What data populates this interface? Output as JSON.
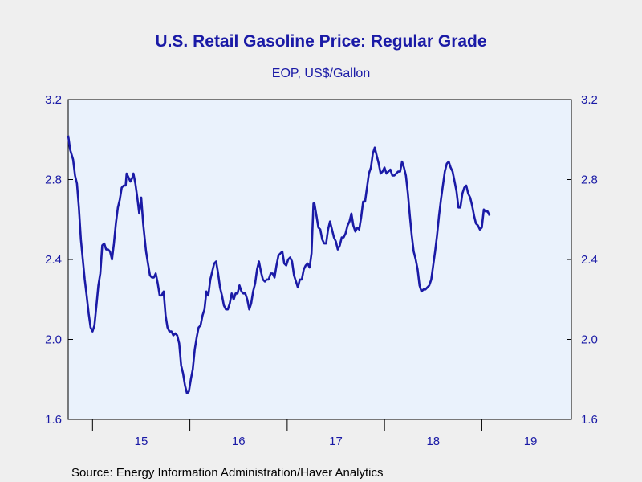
{
  "chart_data": {
    "type": "line",
    "title": "U.S. Retail Gasoline Price: Regular Grade",
    "subtitle": "EOP, US$/Gallon",
    "source": "Source:  Energy Information Administration/Haver Analytics",
    "ylim": [
      1.6,
      3.2
    ],
    "yticks": [
      {
        "value": 1.6,
        "label": "1.6"
      },
      {
        "value": 2.0,
        "label": "2.0"
      },
      {
        "value": 2.4,
        "label": "2.4"
      },
      {
        "value": 2.8,
        "label": "2.8"
      },
      {
        "value": 3.2,
        "label": "3.2"
      }
    ],
    "xlim": [
      2014.75,
      2019.92
    ],
    "xticks": [
      2015,
      2016,
      2017,
      2018,
      2019
    ],
    "xlabels": [
      {
        "value": 2015.5,
        "label": "15"
      },
      {
        "value": 2016.5,
        "label": "16"
      },
      {
        "value": 2017.5,
        "label": "17"
      },
      {
        "value": 2018.5,
        "label": "18"
      },
      {
        "value": 2019.5,
        "label": "19"
      }
    ],
    "grid": false,
    "colors": {
      "line": "#1a1aa6",
      "plot_bg": "#eaf2fc",
      "page_bg": "#efefef",
      "text": "#1a1aa6"
    },
    "series": [
      {
        "values": [
          [
            2014.75,
            3.02
          ],
          [
            2014.77,
            2.95
          ],
          [
            2014.8,
            2.9
          ],
          [
            2014.82,
            2.82
          ],
          [
            2014.84,
            2.78
          ],
          [
            2014.86,
            2.66
          ],
          [
            2014.88,
            2.5
          ],
          [
            2014.9,
            2.4
          ],
          [
            2014.92,
            2.3
          ],
          [
            2014.94,
            2.22
          ],
          [
            2014.96,
            2.13
          ],
          [
            2014.98,
            2.06
          ],
          [
            2015.0,
            2.04
          ],
          [
            2015.02,
            2.07
          ],
          [
            2015.04,
            2.17
          ],
          [
            2015.06,
            2.27
          ],
          [
            2015.08,
            2.33
          ],
          [
            2015.1,
            2.47
          ],
          [
            2015.12,
            2.48
          ],
          [
            2015.14,
            2.45
          ],
          [
            2015.16,
            2.45
          ],
          [
            2015.18,
            2.44
          ],
          [
            2015.2,
            2.4
          ],
          [
            2015.22,
            2.48
          ],
          [
            2015.24,
            2.58
          ],
          [
            2015.26,
            2.66
          ],
          [
            2015.28,
            2.7
          ],
          [
            2015.3,
            2.76
          ],
          [
            2015.32,
            2.77
          ],
          [
            2015.34,
            2.77
          ],
          [
            2015.35,
            2.83
          ],
          [
            2015.37,
            2.81
          ],
          [
            2015.39,
            2.79
          ],
          [
            2015.41,
            2.81
          ],
          [
            2015.42,
            2.83
          ],
          [
            2015.44,
            2.78
          ],
          [
            2015.46,
            2.71
          ],
          [
            2015.48,
            2.63
          ],
          [
            2015.5,
            2.71
          ],
          [
            2015.52,
            2.58
          ],
          [
            2015.55,
            2.44
          ],
          [
            2015.57,
            2.38
          ],
          [
            2015.59,
            2.32
          ],
          [
            2015.61,
            2.31
          ],
          [
            2015.63,
            2.31
          ],
          [
            2015.65,
            2.33
          ],
          [
            2015.67,
            2.28
          ],
          [
            2015.69,
            2.22
          ],
          [
            2015.71,
            2.22
          ],
          [
            2015.73,
            2.24
          ],
          [
            2015.75,
            2.12
          ],
          [
            2015.77,
            2.06
          ],
          [
            2015.79,
            2.04
          ],
          [
            2015.81,
            2.04
          ],
          [
            2015.83,
            2.02
          ],
          [
            2015.85,
            2.03
          ],
          [
            2015.87,
            2.02
          ],
          [
            2015.89,
            1.98
          ],
          [
            2015.91,
            1.87
          ],
          [
            2015.93,
            1.83
          ],
          [
            2015.95,
            1.77
          ],
          [
            2015.97,
            1.73
          ],
          [
            2015.99,
            1.74
          ],
          [
            2016.01,
            1.8
          ],
          [
            2016.03,
            1.85
          ],
          [
            2016.05,
            1.95
          ],
          [
            2016.07,
            2.01
          ],
          [
            2016.09,
            2.06
          ],
          [
            2016.11,
            2.07
          ],
          [
            2016.13,
            2.12
          ],
          [
            2016.15,
            2.15
          ],
          [
            2016.17,
            2.24
          ],
          [
            2016.19,
            2.22
          ],
          [
            2016.21,
            2.3
          ],
          [
            2016.23,
            2.34
          ],
          [
            2016.25,
            2.38
          ],
          [
            2016.27,
            2.39
          ],
          [
            2016.29,
            2.33
          ],
          [
            2016.31,
            2.26
          ],
          [
            2016.33,
            2.22
          ],
          [
            2016.35,
            2.17
          ],
          [
            2016.37,
            2.15
          ],
          [
            2016.39,
            2.15
          ],
          [
            2016.41,
            2.18
          ],
          [
            2016.43,
            2.23
          ],
          [
            2016.45,
            2.2
          ],
          [
            2016.47,
            2.23
          ],
          [
            2016.49,
            2.23
          ],
          [
            2016.51,
            2.27
          ],
          [
            2016.53,
            2.24
          ],
          [
            2016.55,
            2.23
          ],
          [
            2016.57,
            2.23
          ],
          [
            2016.59,
            2.2
          ],
          [
            2016.61,
            2.15
          ],
          [
            2016.63,
            2.18
          ],
          [
            2016.65,
            2.24
          ],
          [
            2016.67,
            2.28
          ],
          [
            2016.69,
            2.35
          ],
          [
            2016.71,
            2.39
          ],
          [
            2016.73,
            2.34
          ],
          [
            2016.75,
            2.3
          ],
          [
            2016.77,
            2.29
          ],
          [
            2016.79,
            2.3
          ],
          [
            2016.81,
            2.3
          ],
          [
            2016.83,
            2.33
          ],
          [
            2016.85,
            2.33
          ],
          [
            2016.87,
            2.31
          ],
          [
            2016.89,
            2.37
          ],
          [
            2016.91,
            2.42
          ],
          [
            2016.93,
            2.43
          ],
          [
            2016.95,
            2.44
          ],
          [
            2016.97,
            2.38
          ],
          [
            2016.99,
            2.37
          ],
          [
            2017.01,
            2.4
          ],
          [
            2017.03,
            2.41
          ],
          [
            2017.05,
            2.39
          ],
          [
            2017.07,
            2.32
          ],
          [
            2017.09,
            2.29
          ],
          [
            2017.11,
            2.26
          ],
          [
            2017.13,
            2.3
          ],
          [
            2017.15,
            2.3
          ],
          [
            2017.17,
            2.35
          ],
          [
            2017.19,
            2.37
          ],
          [
            2017.21,
            2.38
          ],
          [
            2017.23,
            2.36
          ],
          [
            2017.25,
            2.43
          ],
          [
            2017.27,
            2.68
          ],
          [
            2017.28,
            2.68
          ],
          [
            2017.3,
            2.62
          ],
          [
            2017.32,
            2.56
          ],
          [
            2017.34,
            2.55
          ],
          [
            2017.36,
            2.5
          ],
          [
            2017.38,
            2.48
          ],
          [
            2017.4,
            2.48
          ],
          [
            2017.42,
            2.55
          ],
          [
            2017.44,
            2.59
          ],
          [
            2017.46,
            2.55
          ],
          [
            2017.48,
            2.51
          ],
          [
            2017.5,
            2.49
          ],
          [
            2017.52,
            2.45
          ],
          [
            2017.54,
            2.47
          ],
          [
            2017.56,
            2.51
          ],
          [
            2017.58,
            2.51
          ],
          [
            2017.6,
            2.53
          ],
          [
            2017.62,
            2.57
          ],
          [
            2017.64,
            2.59
          ],
          [
            2017.66,
            2.63
          ],
          [
            2017.68,
            2.57
          ],
          [
            2017.7,
            2.54
          ],
          [
            2017.72,
            2.56
          ],
          [
            2017.74,
            2.55
          ],
          [
            2017.76,
            2.61
          ],
          [
            2017.78,
            2.69
          ],
          [
            2017.8,
            2.69
          ],
          [
            2017.82,
            2.76
          ],
          [
            2017.84,
            2.83
          ],
          [
            2017.86,
            2.86
          ],
          [
            2017.88,
            2.93
          ],
          [
            2017.9,
            2.96
          ],
          [
            2017.92,
            2.92
          ],
          [
            2017.94,
            2.88
          ],
          [
            2017.96,
            2.83
          ],
          [
            2017.98,
            2.84
          ],
          [
            2018.0,
            2.86
          ],
          [
            2018.02,
            2.83
          ],
          [
            2018.04,
            2.84
          ],
          [
            2018.06,
            2.85
          ],
          [
            2018.08,
            2.82
          ],
          [
            2018.1,
            2.82
          ],
          [
            2018.12,
            2.83
          ],
          [
            2018.14,
            2.84
          ],
          [
            2018.16,
            2.84
          ],
          [
            2018.18,
            2.89
          ],
          [
            2018.2,
            2.86
          ],
          [
            2018.22,
            2.82
          ],
          [
            2018.24,
            2.73
          ],
          [
            2018.26,
            2.62
          ],
          [
            2018.28,
            2.52
          ],
          [
            2018.3,
            2.44
          ],
          [
            2018.32,
            2.4
          ],
          [
            2018.34,
            2.35
          ],
          [
            2018.36,
            2.27
          ],
          [
            2018.38,
            2.24
          ],
          [
            2018.4,
            2.25
          ],
          [
            2018.42,
            2.25
          ],
          [
            2018.44,
            2.26
          ],
          [
            2018.46,
            2.27
          ],
          [
            2018.48,
            2.3
          ],
          [
            2018.5,
            2.37
          ],
          [
            2018.52,
            2.44
          ],
          [
            2018.54,
            2.52
          ],
          [
            2018.56,
            2.62
          ],
          [
            2018.58,
            2.7
          ],
          [
            2018.6,
            2.77
          ],
          [
            2018.62,
            2.84
          ],
          [
            2018.64,
            2.88
          ],
          [
            2018.66,
            2.89
          ],
          [
            2018.68,
            2.86
          ],
          [
            2018.7,
            2.84
          ],
          [
            2018.72,
            2.79
          ],
          [
            2018.74,
            2.74
          ],
          [
            2018.76,
            2.66
          ],
          [
            2018.78,
            2.66
          ],
          [
            2018.8,
            2.73
          ],
          [
            2018.82,
            2.76
          ],
          [
            2018.84,
            2.77
          ],
          [
            2018.86,
            2.73
          ],
          [
            2018.88,
            2.71
          ],
          [
            2018.9,
            2.67
          ],
          [
            2018.92,
            2.62
          ],
          [
            2018.94,
            2.58
          ],
          [
            2018.96,
            2.57
          ],
          [
            2018.98,
            2.55
          ],
          [
            2019.0,
            2.56
          ],
          [
            2019.02,
            2.65
          ],
          [
            2019.04,
            2.64
          ],
          [
            2019.06,
            2.64
          ],
          [
            2019.08,
            2.62
          ]
        ]
      }
    ]
  }
}
